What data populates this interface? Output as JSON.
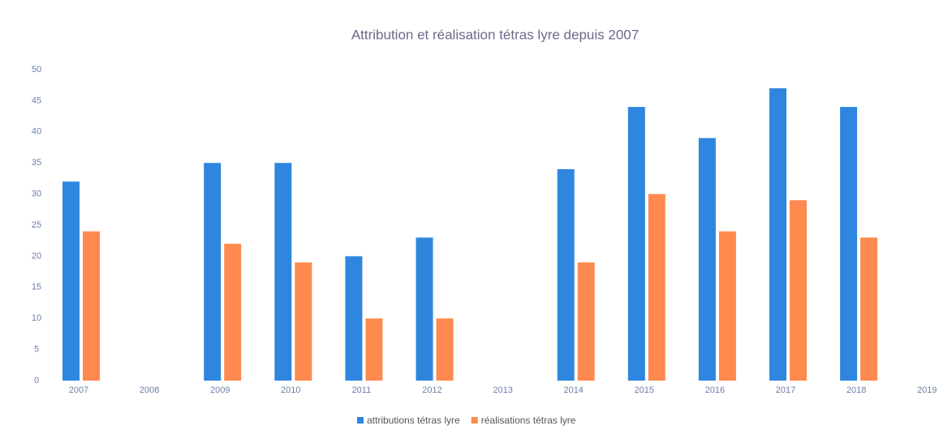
{
  "chart_data": {
    "type": "bar",
    "title": "Attribution et réalisation tétras lyre depuis 2007",
    "categories": [
      "2007",
      "2008",
      "2009",
      "2010",
      "2011",
      "2012",
      "2013",
      "2014",
      "2015",
      "2016",
      "2017",
      "2018",
      "2019"
    ],
    "series": [
      {
        "name": "attributions tétras lyre",
        "color": "#2e86de",
        "values": [
          32,
          null,
          35,
          35,
          20,
          23,
          null,
          34,
          44,
          39,
          47,
          44,
          null
        ]
      },
      {
        "name": "réalisations tétras lyre",
        "color": "#ff8a50",
        "values": [
          24,
          null,
          22,
          19,
          10,
          10,
          null,
          19,
          30,
          24,
          29,
          23,
          null
        ]
      }
    ],
    "ylim": [
      0,
      50
    ],
    "yticks": [
      0,
      5,
      10,
      15,
      20,
      25,
      30,
      35,
      40,
      45,
      50
    ],
    "grid": false,
    "legend": "bottom"
  }
}
